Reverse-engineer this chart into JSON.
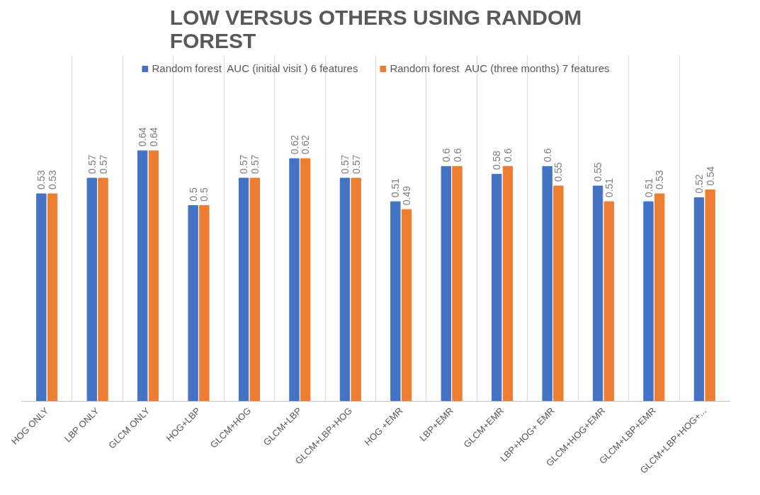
{
  "chart_data": {
    "type": "bar",
    "title": "LOW VERSUS OTHERS USING RANDOM FOREST",
    "categories": [
      "HOG ONLY",
      "LBP ONLY",
      "GLCM ONLY",
      "HOG+LBP",
      "GLCM+HOG",
      "GLCM+LBP",
      "GLCM+LBP+HOG",
      "HOG +EMR",
      "LBP+EMR",
      "GLCM+EMR",
      "LBP+HOG+ EMR",
      "GLCM+HOG+EMR",
      "GLCM+LBP+EMR",
      "GLCM+LBP+HOG+..."
    ],
    "series": [
      {
        "name": "Random forest  AUC (initial visit ) 6 features",
        "color": "#4472c4",
        "values": [
          0.53,
          0.57,
          0.64,
          0.5,
          0.57,
          0.62,
          0.57,
          0.51,
          0.6,
          0.58,
          0.6,
          0.55,
          0.51,
          0.52
        ]
      },
      {
        "name": "Random forest  AUC (three months) 7 features",
        "color": "#ed7d31",
        "values": [
          0.53,
          0.57,
          0.64,
          0.5,
          0.57,
          0.62,
          0.57,
          0.49,
          0.6,
          0.6,
          0.55,
          0.51,
          0.53,
          0.54
        ]
      }
    ],
    "tick_labels": "x",
    "data_labels": true,
    "grid": "x",
    "legend": "top"
  }
}
